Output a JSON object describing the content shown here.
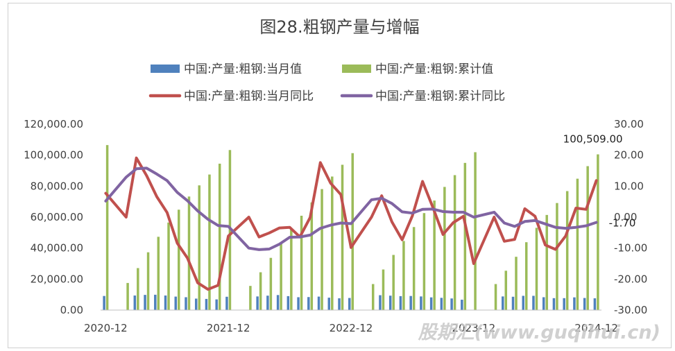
{
  "chart_data": {
    "type": "bar+line",
    "title": "图28.粗钢产量与增幅",
    "categories": [
      "2020-12",
      "2021-01",
      "2021-02",
      "2021-03",
      "2021-04",
      "2021-05",
      "2021-06",
      "2021-07",
      "2021-08",
      "2021-09",
      "2021-10",
      "2021-11",
      "2021-12",
      "2022-01",
      "2022-02",
      "2022-03",
      "2022-04",
      "2022-05",
      "2022-06",
      "2022-07",
      "2022-08",
      "2022-09",
      "2022-10",
      "2022-11",
      "2022-12",
      "2023-01",
      "2023-02",
      "2023-03",
      "2023-04",
      "2023-05",
      "2023-06",
      "2023-07",
      "2023-08",
      "2023-09",
      "2023-10",
      "2023-11",
      "2023-12",
      "2024-01",
      "2024-02",
      "2024-03",
      "2024-04",
      "2024-05",
      "2024-06",
      "2024-07",
      "2024-08",
      "2024-09",
      "2024-10",
      "2024-11",
      "2024-12"
    ],
    "x_tick_labels": [
      "2020-12",
      "2021-12",
      "2022-12",
      "2023-12",
      "2024-12"
    ],
    "left_axis": {
      "min": 0,
      "max": 120000,
      "step": 20000,
      "tick_labels": [
        "0.00",
        "20,000.00",
        "40,000.00",
        "60,000.00",
        "80,000.00",
        "100,000.00",
        "120,000.00"
      ]
    },
    "right_axis": {
      "min": -30,
      "max": 30,
      "step": 10,
      "tick_labels": [
        "-30.00",
        "-20.00",
        "-10.00",
        "0.00",
        "10.00",
        "20.00",
        "30.00"
      ]
    },
    "legend": {
      "placement": "top"
    },
    "series": [
      {
        "name": "中国:产量:粗钢:当月值",
        "type": "bar",
        "axis": "left",
        "color": "#4f81bd",
        "values": [
          9100,
          null,
          null,
          9400,
          9800,
          9900,
          9400,
          8700,
          8300,
          7400,
          7200,
          6900,
          8600,
          null,
          null,
          8800,
          9300,
          9700,
          9000,
          8300,
          8400,
          8700,
          8000,
          7600,
          7800,
          null,
          null,
          9600,
          9300,
          9000,
          9100,
          8800,
          8200,
          7900,
          7500,
          6700,
          null,
          null,
          null,
          8800,
          8600,
          9200,
          9200,
          8300,
          7700,
          7700,
          8200,
          7800,
          7600
        ]
      },
      {
        "name": "中国:产量:粗钢:累计值",
        "type": "bar",
        "axis": "left",
        "color": "#9bbb59",
        "values": [
          106500,
          null,
          17500,
          27100,
          37300,
          47300,
          56500,
          64800,
          73300,
          80500,
          87500,
          94500,
          103300,
          null,
          15600,
          24400,
          33700,
          43400,
          52700,
          60900,
          69500,
          78100,
          86200,
          93800,
          101300,
          null,
          16800,
          26200,
          35600,
          44600,
          53600,
          62600,
          70700,
          79500,
          87100,
          95000,
          101900,
          null,
          16800,
          25400,
          34400,
          43800,
          53100,
          61400,
          69100,
          76800,
          84800,
          92900,
          100509
        ]
      },
      {
        "name": "中国:产量:粗钢:当月同比",
        "type": "line",
        "axis": "right",
        "color": "#c0504d",
        "values": [
          7.7,
          null,
          0.0,
          19.1,
          13.4,
          6.6,
          1.5,
          -8.4,
          -13.2,
          -21.2,
          -23.3,
          -22.0,
          -6.1,
          null,
          0.0,
          -6.4,
          -5.1,
          -3.5,
          -3.3,
          -6.4,
          -0.1,
          17.6,
          11.0,
          7.3,
          -9.8,
          null,
          0.0,
          6.9,
          -1.5,
          -7.3,
          0.4,
          11.5,
          3.2,
          -5.6,
          -1.8,
          0.3,
          -15.0,
          null,
          0.0,
          -7.8,
          -7.2,
          2.7,
          0.3,
          -9.0,
          -10.4,
          -6.1,
          2.9,
          2.5,
          11.8
        ]
      },
      {
        "name": "中国:产量:粗钢:累计同比",
        "type": "line",
        "axis": "right",
        "color": "#8064a2",
        "values": [
          5.2,
          null,
          12.9,
          15.6,
          15.8,
          13.9,
          11.8,
          8.0,
          5.3,
          2.0,
          -0.7,
          -2.7,
          -3.0,
          null,
          -10.0,
          -10.5,
          -10.3,
          -8.7,
          -6.5,
          -6.4,
          -5.8,
          -3.6,
          -2.6,
          -1.9,
          -2.1,
          null,
          5.6,
          6.1,
          4.4,
          1.7,
          1.3,
          2.5,
          2.6,
          1.8,
          1.6,
          1.6,
          0.0,
          null,
          1.6,
          -1.9,
          -3.0,
          -1.4,
          -1.1,
          -2.2,
          -3.3,
          -3.6,
          -3.3,
          -2.8,
          -1.7
        ]
      }
    ],
    "annotations": [
      {
        "text": "100,509.00",
        "series": "中国:产量:粗钢:累计值",
        "category": "2024-12"
      },
      {
        "text": "-1.70",
        "series": "中国:产量:粗钢:累计同比",
        "category": "2024-12"
      }
    ]
  },
  "watermark": {
    "text": "股期汇(www.guqihui.cn)"
  }
}
